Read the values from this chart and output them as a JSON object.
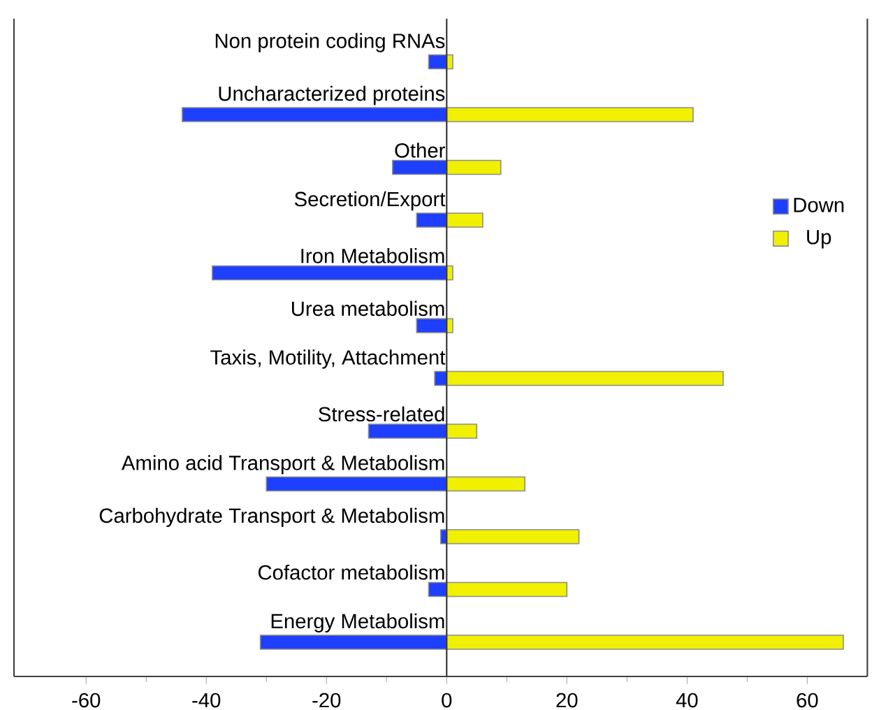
{
  "chart_data": {
    "type": "bar",
    "orientation": "horizontal",
    "stacked": true,
    "categories": [
      "Non protein coding RNAs",
      "Uncharacterized proteins",
      "Other",
      "Secretion/Export",
      "Iron Metabolism",
      "Urea metabolism",
      "Taxis, Motility, Attachment",
      "Stress-related",
      "Amino acid Transport & Metabolism",
      "Carbohydrate Transport & Metabolism",
      "Cofactor metabolism",
      "Energy Metabolism"
    ],
    "series": [
      {
        "name": "Down",
        "color": "#1f3fff",
        "values": [
          -3,
          -44,
          -9,
          -5,
          -39,
          -5,
          -2,
          -13,
          -30,
          -1,
          -3,
          -31
        ]
      },
      {
        "name": "Up",
        "color": "#f0f000",
        "values": [
          1,
          41,
          9,
          6,
          1,
          1,
          46,
          5,
          13,
          22,
          20,
          66
        ]
      }
    ],
    "xlim": [
      -72,
      70
    ],
    "xticks": [
      -60,
      -40,
      -20,
      0,
      20,
      40,
      60
    ],
    "legend": "right"
  }
}
